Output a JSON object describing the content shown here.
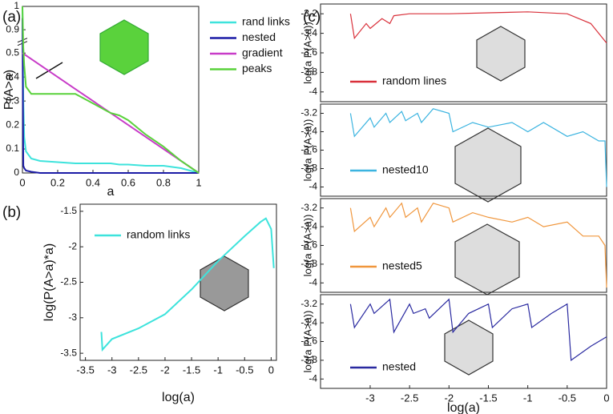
{
  "chart_data": [
    {
      "type": "line",
      "panel_label": "(a)",
      "xlabel": "a",
      "ylabel": "P(A>a)",
      "x": [
        0,
        0.005,
        0.01,
        0.02,
        0.05,
        0.1,
        0.2,
        0.3,
        0.4,
        0.5,
        0.55,
        0.6,
        0.7,
        0.8,
        0.9,
        1
      ],
      "xlim": [
        0,
        1
      ],
      "xticks": [
        0,
        0.2,
        0.4,
        0.6,
        0.8,
        1
      ],
      "ylim": [
        0,
        1
      ],
      "yticks": [
        0,
        0.1,
        0.2,
        0.3,
        0.4,
        0.5,
        0.9,
        1
      ],
      "y_break": [
        0.5,
        0.9
      ],
      "series": [
        {
          "name": "rand links",
          "color": "#3ee3dc",
          "values": [
            1,
            0.3,
            0.15,
            0.09,
            0.06,
            0.05,
            0.045,
            0.04,
            0.04,
            0.04,
            0.035,
            0.035,
            0.03,
            0.03,
            0.02,
            0
          ]
        },
        {
          "name": "nested",
          "color": "#1c1ca6",
          "values": [
            0.95,
            0.03,
            0.02,
            0.01,
            0.005,
            0,
            0,
            0,
            0,
            0,
            0,
            0,
            0,
            0,
            0,
            0
          ]
        },
        {
          "name": "gradient",
          "color": "#c83cc8",
          "values": [
            0.5,
            0.4975,
            0.495,
            0.49,
            0.475,
            0.45,
            0.4,
            0.35,
            0.3,
            0.25,
            0.225,
            0.2,
            0.15,
            0.1,
            0.05,
            0
          ]
        },
        {
          "name": "peaks",
          "color": "#5ad23c",
          "values": [
            1,
            0.6,
            0.45,
            0.36,
            0.33,
            0.33,
            0.33,
            0.33,
            0.29,
            0.25,
            0.24,
            0.22,
            0.16,
            0.11,
            0.05,
            0
          ]
        }
      ]
    },
    {
      "type": "line",
      "panel_label": "(b)",
      "xlabel": "log(a)",
      "ylabel": "log(P(A>a)*a)",
      "x": [
        -3.2,
        -3.18,
        -3,
        -2.5,
        -2,
        -1.5,
        -1,
        -0.5,
        -0.2,
        -0.1,
        0,
        0.05
      ],
      "xlim": [
        -3.6,
        0.1
      ],
      "xticks": [
        -3.5,
        -3,
        -2.5,
        -2,
        -1.5,
        -1,
        -0.5,
        0
      ],
      "ylim": [
        -3.6,
        -1.4
      ],
      "yticks": [
        -3.5,
        -3,
        -2.5,
        -2,
        -1.5
      ],
      "series": [
        {
          "name": "random links",
          "color": "#3ee3dc",
          "values": [
            -3.2,
            -3.45,
            -3.3,
            -3.15,
            -2.95,
            -2.6,
            -2.2,
            -1.85,
            -1.65,
            -1.6,
            -1.75,
            -2.3
          ]
        }
      ]
    },
    {
      "type": "line",
      "panel_label": "(c)",
      "ylabel": "log(a P(A>a))",
      "x": [
        -3.25,
        -3.2,
        -3.05,
        -3.0,
        -2.85,
        -2.75,
        -2.7,
        -2.5,
        -2.3,
        -2,
        -1.5,
        -1,
        -0.5,
        -0.2,
        0
      ],
      "xlim": [
        -3.63,
        0
      ],
      "ylim": [
        -4.1,
        -3.1
      ],
      "yticks": [
        -4,
        -3.8,
        -3.6,
        -3.4,
        -3.2
      ],
      "series": [
        {
          "name": "random lines",
          "color": "#d9303a",
          "values": [
            -3.2,
            -3.45,
            -3.3,
            -3.35,
            -3.25,
            -3.3,
            -3.22,
            -3.2,
            -3.2,
            -3.2,
            -3.19,
            -3.18,
            -3.2,
            -3.3,
            -3.5
          ]
        }
      ]
    },
    {
      "type": "line",
      "ylabel": "log(a P(A>a))",
      "x": [
        -3.25,
        -3.2,
        -3,
        -2.95,
        -2.8,
        -2.75,
        -2.6,
        -2.55,
        -2.4,
        -2.35,
        -2.2,
        -2,
        -1.95,
        -1.7,
        -1.5,
        -1.2,
        -1,
        -0.8,
        -0.5,
        -0.3,
        -0.1,
        -0.02,
        0
      ],
      "xlim": [
        -3.63,
        0
      ],
      "ylim": [
        -4.1,
        -3.1
      ],
      "yticks": [
        -4,
        -3.8,
        -3.6,
        -3.4,
        -3.2
      ],
      "series": [
        {
          "name": "nested10",
          "color": "#3cb4e0",
          "values": [
            -3.2,
            -3.45,
            -3.25,
            -3.35,
            -3.2,
            -3.3,
            -3.18,
            -3.28,
            -3.2,
            -3.3,
            -3.15,
            -3.2,
            -3.4,
            -3.3,
            -3.35,
            -3.3,
            -3.4,
            -3.3,
            -3.45,
            -3.4,
            -3.5,
            -3.5,
            -4
          ]
        }
      ]
    },
    {
      "type": "line",
      "ylabel": "log(a P(A>a))",
      "x": [
        -3.25,
        -3.2,
        -3,
        -2.95,
        -2.8,
        -2.75,
        -2.6,
        -2.55,
        -2.4,
        -2.35,
        -2.2,
        -2,
        -1.95,
        -1.7,
        -1.5,
        -1.2,
        -1,
        -0.8,
        -0.5,
        -0.3,
        -0.1,
        -0.02,
        0
      ],
      "xlim": [
        -3.63,
        0
      ],
      "ylim": [
        -4.1,
        -3.1
      ],
      "yticks": [
        -4,
        -3.8,
        -3.6,
        -3.4,
        -3.2
      ],
      "series": [
        {
          "name": "nested5",
          "color": "#f0963c",
          "values": [
            -3.2,
            -3.45,
            -3.3,
            -3.4,
            -3.2,
            -3.3,
            -3.15,
            -3.3,
            -3.2,
            -3.35,
            -3.15,
            -3.2,
            -3.35,
            -3.25,
            -3.3,
            -3.35,
            -3.3,
            -3.4,
            -3.35,
            -3.5,
            -3.5,
            -3.6,
            -4.05
          ]
        }
      ]
    },
    {
      "type": "line",
      "xlabel": "log(a)",
      "ylabel": "log(a P(A>a))",
      "x": [
        -3.25,
        -3.2,
        -3.0,
        -2.95,
        -2.75,
        -2.7,
        -2.5,
        -2.45,
        -2.3,
        -2.25,
        -2.0,
        -1.95,
        -1.75,
        -1.5,
        -1.45,
        -1.2,
        -1.0,
        -0.95,
        -0.7,
        -0.5,
        -0.45,
        -0.2,
        0
      ],
      "xlim": [
        -3.63,
        0
      ],
      "xticks": [
        -3,
        -2.5,
        -2,
        -1.5,
        -1,
        -0.5,
        0
      ],
      "ylim": [
        -4.1,
        -3.1
      ],
      "yticks": [
        -4,
        -3.8,
        -3.6,
        -3.4,
        -3.2
      ],
      "series": [
        {
          "name": "nested",
          "color": "#2a2aa0",
          "values": [
            -3.2,
            -3.45,
            -3.2,
            -3.3,
            -3.15,
            -3.5,
            -3.2,
            -3.3,
            -3.25,
            -3.35,
            -3.15,
            -3.5,
            -3.3,
            -3.2,
            -3.45,
            -3.25,
            -3.2,
            -3.45,
            -3.3,
            -3.2,
            -3.8,
            -3.65,
            -3.55
          ]
        }
      ]
    }
  ]
}
